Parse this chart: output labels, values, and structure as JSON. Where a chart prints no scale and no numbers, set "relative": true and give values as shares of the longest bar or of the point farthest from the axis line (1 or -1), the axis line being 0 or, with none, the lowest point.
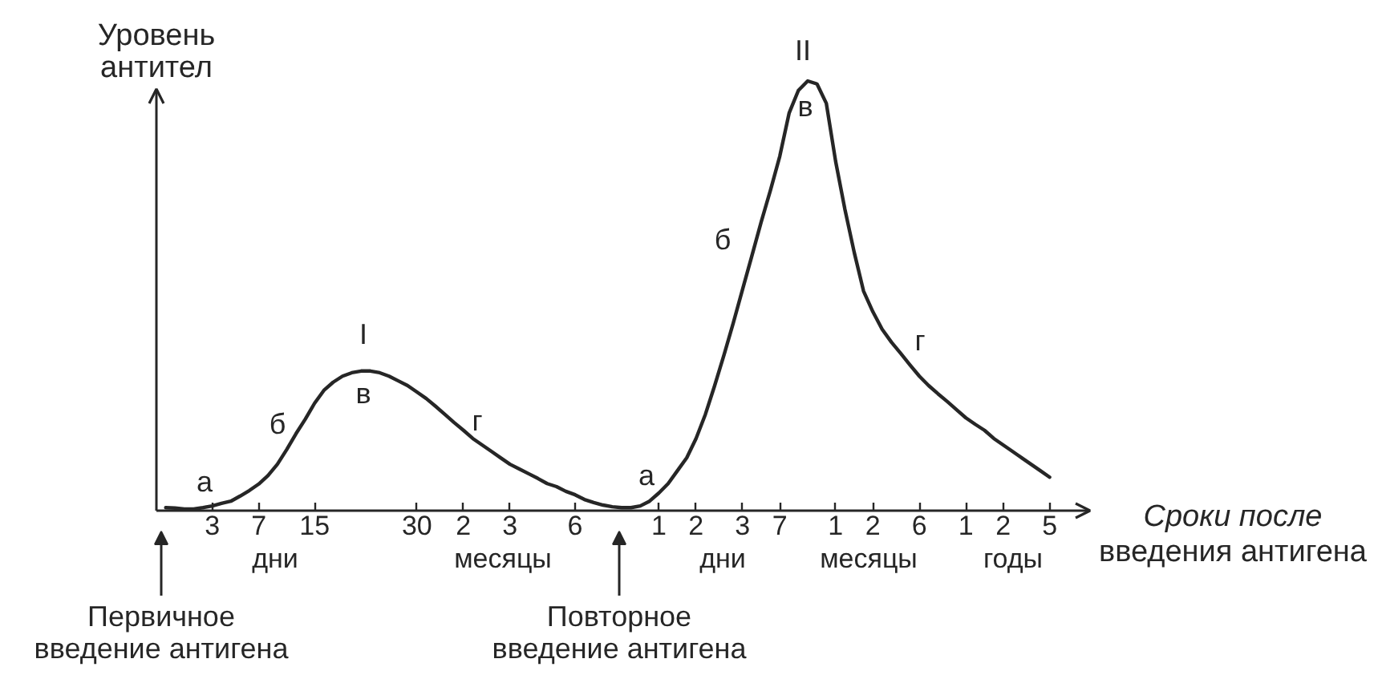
{
  "chart_data": {
    "type": "line",
    "relative": true,
    "xlabel": "Сроки после введения антигена",
    "ylabel": "Уровень антител",
    "categories": [
      null,
      null,
      null,
      null,
      null,
      null,
      "3",
      null,
      null,
      null,
      null,
      "7",
      null,
      null,
      null,
      null,
      null,
      "15",
      null,
      null,
      null,
      null,
      null,
      null,
      null,
      null,
      null,
      null,
      "30",
      null,
      null,
      null,
      null,
      "2",
      null,
      null,
      null,
      null,
      "3",
      null,
      null,
      null,
      null,
      null,
      null,
      "6",
      null,
      null,
      null,
      null,
      null,
      null,
      null,
      null,
      "1",
      null,
      null,
      null,
      "2",
      null,
      null,
      null,
      null,
      "3",
      null,
      null,
      null,
      "7",
      null,
      null,
      null,
      null,
      null,
      "1",
      null,
      null,
      null,
      "2",
      null,
      null,
      null,
      null,
      "6",
      null,
      null,
      null,
      null,
      "1",
      null,
      null,
      null,
      "2",
      null,
      null,
      null,
      null,
      "5",
      null,
      null,
      null,
      null
    ],
    "series": [
      {
        "color": "#262626",
        "values": [
          null,
          0.007,
          0.006,
          0.004,
          0.004,
          0.007,
          0.011,
          0.017,
          0.022,
          0.034,
          0.047,
          0.062,
          0.082,
          0.108,
          0.142,
          0.179,
          0.213,
          0.25,
          0.28,
          0.299,
          0.313,
          0.321,
          0.325,
          0.325,
          0.321,
          0.313,
          0.302,
          0.291,
          0.276,
          0.261,
          0.243,
          0.224,
          0.205,
          0.187,
          0.168,
          0.153,
          0.138,
          0.123,
          0.108,
          0.097,
          0.086,
          0.075,
          0.063,
          0.056,
          0.045,
          0.037,
          0.026,
          0.019,
          0.013,
          0.009,
          0.007,
          0.007,
          0.011,
          0.022,
          0.041,
          0.063,
          0.093,
          0.123,
          0.168,
          0.224,
          0.291,
          0.362,
          0.437,
          0.515,
          0.593,
          0.672,
          0.746,
          0.825,
          0.925,
          0.978,
          1.0,
          0.993,
          0.948,
          0.813,
          0.701,
          0.601,
          0.511,
          0.463,
          0.422,
          0.392,
          0.366,
          0.339,
          0.313,
          0.291,
          0.272,
          0.254,
          0.235,
          0.216,
          0.201,
          0.187,
          0.168,
          0.153,
          0.138,
          0.123,
          0.108,
          0.093,
          0.078,
          null,
          null,
          null,
          null
        ]
      }
    ],
    "annotations": [
      "а",
      "б",
      "I",
      "в",
      "г",
      "а",
      "б",
      "II",
      "в",
      "г",
      "дни",
      "месяцы",
      "дни",
      "месяцы",
      "годы",
      "Первичное введение антигена",
      "Повторное введение антигена"
    ]
  }
}
